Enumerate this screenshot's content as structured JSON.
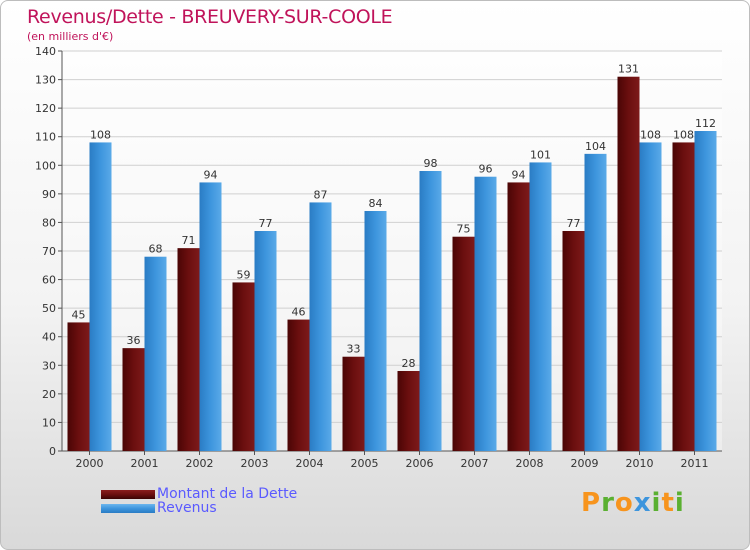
{
  "header": {
    "title": "Revenus/Dette - BREUVERY-SUR-COOLE",
    "subtitle": "(en milliers d'€)"
  },
  "colors": {
    "title": "#c0135a",
    "dette": "#6b0f0f",
    "revenus": "#3d95dd",
    "legend_text": "#5a5aff"
  },
  "logo": {
    "letters": [
      "P",
      "r",
      "o",
      "x",
      "i",
      "t",
      "i"
    ],
    "colors": [
      "#f7941d",
      "#5ab031",
      "#f7941d",
      "#3d95dd",
      "#5ab031",
      "#f7941d",
      "#5ab031"
    ]
  },
  "chart_data": {
    "type": "bar",
    "title": "Revenus/Dette - BREUVERY-SUR-COOLE",
    "subtitle": "(en milliers d'€)",
    "categories": [
      "2000",
      "2001",
      "2002",
      "2003",
      "2004",
      "2005",
      "2006",
      "2007",
      "2008",
      "2009",
      "2010",
      "2011"
    ],
    "series": [
      {
        "name": "Montant de la Dette",
        "color": "#6b0f0f",
        "values": [
          45,
          36,
          71,
          59,
          46,
          33,
          28,
          75,
          94,
          77,
          131,
          108
        ]
      },
      {
        "name": "Revenus",
        "color": "#3d95dd",
        "values": [
          108,
          68,
          94,
          77,
          87,
          84,
          98,
          96,
          101,
          104,
          108,
          112
        ]
      }
    ],
    "ylim": [
      0,
      140
    ],
    "yticks": [
      0,
      10,
      20,
      30,
      40,
      50,
      60,
      70,
      80,
      90,
      100,
      110,
      120,
      130,
      140
    ],
    "grid": true,
    "legend": "bottom-left",
    "data_labels": true
  }
}
